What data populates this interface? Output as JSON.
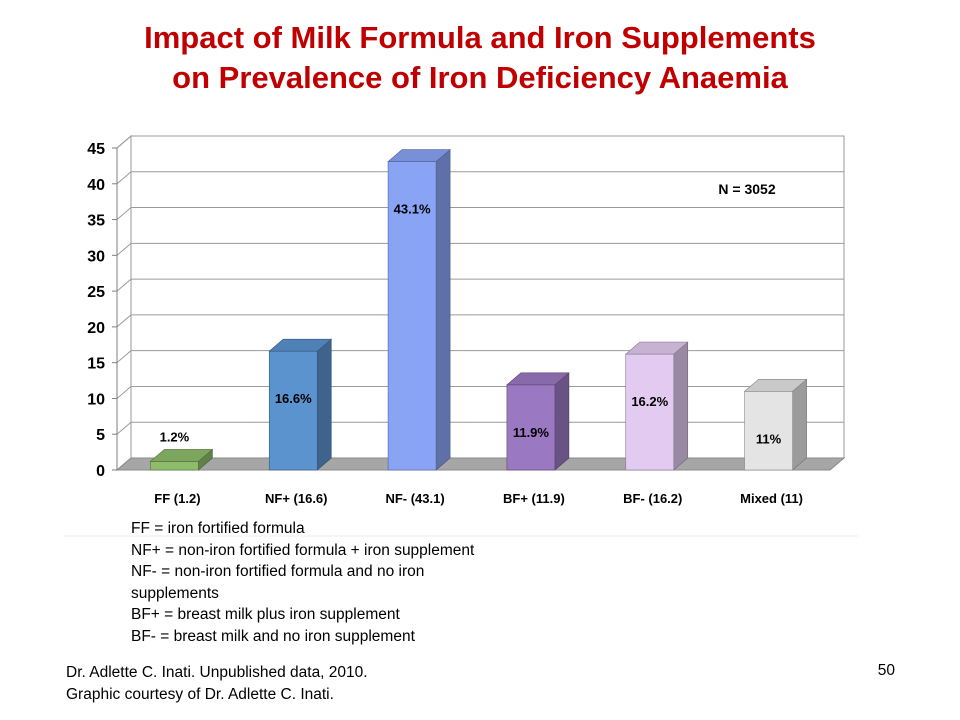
{
  "slide": {
    "title_line1": "Impact of Milk Formula and Iron Supplements",
    "title_line2": "on Prevalence of Iron Deficiency Anaemia",
    "notes": [
      "FF = iron fortified formula",
      "NF+ = non-iron fortified formula + iron supplement",
      "NF- = non-iron fortified formula and no iron",
      "supplements",
      "BF+ = breast milk plus iron supplement",
      "BF- = breast milk and no iron supplement"
    ],
    "footer_line1": "Dr. Adlette C. Inati. Unpublished data, 2010.",
    "footer_line2": "Graphic courtesy of Dr. Adlette C. Inati.",
    "page_number": "50"
  },
  "chart_data": {
    "type": "bar",
    "categories": [
      "FF (1.2)",
      "NF+ (16.6)",
      "NF- (43.1)",
      "BF+ (11.9)",
      "BF- (16.2)",
      "Mixed (11)"
    ],
    "values": [
      1.2,
      16.6,
      43.1,
      11.9,
      16.2,
      11
    ],
    "data_labels": [
      "1.2%",
      "16.6%",
      "43.1%",
      "11.9%",
      "16.2%",
      "11%"
    ],
    "colors": [
      "#8dbd6a",
      "#5b93cf",
      "#8aa4f5",
      "#9a78c2",
      "#e2caf0",
      "#e4e4e4"
    ],
    "annotation": "N = 3052",
    "ylim": [
      0,
      45
    ],
    "yticks": [
      0,
      5,
      10,
      15,
      20,
      25,
      30,
      35,
      40,
      45
    ],
    "grid": true,
    "style": "3d-column"
  }
}
